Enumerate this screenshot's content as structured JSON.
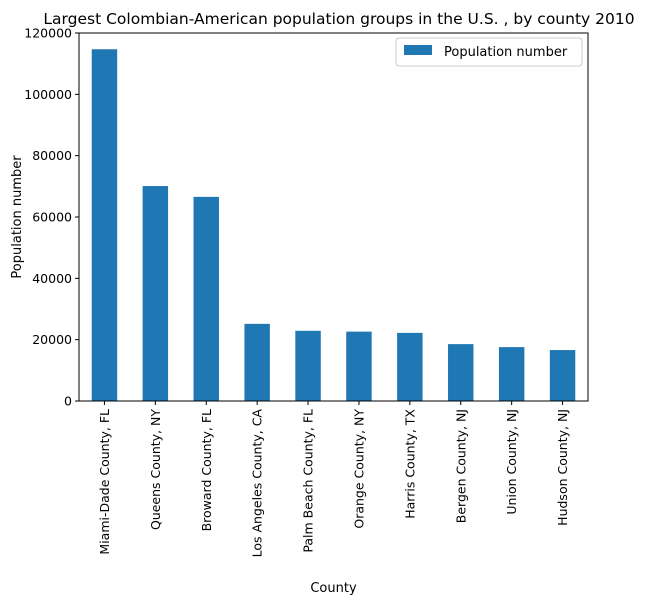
{
  "chart_data": {
    "type": "bar",
    "title": "Largest Colombian-American population groups in the U.S. , by county 2010",
    "xlabel": "County",
    "ylabel": "Population number",
    "categories": [
      "Miami-Dade County, FL",
      "Queens County, NY",
      "Broward County, FL",
      "Los Angeles County, CA",
      "Palm Beach County, FL",
      "Orange County, NY",
      "Harris County, TX",
      "Bergen County, NJ",
      "Union County, NJ",
      "Hudson County, NJ"
    ],
    "series": [
      {
        "name": "Population number",
        "values": [
          114701,
          70091,
          66564,
          25153,
          22889,
          22626,
          22212,
          18546,
          17572,
          16612
        ]
      }
    ],
    "ylim": [
      0,
      120000
    ],
    "yticks": [
      0,
      20000,
      40000,
      60000,
      80000,
      100000,
      120000
    ],
    "grid": false,
    "legend": "top-right",
    "colors": {
      "bar": "#1f77b4"
    }
  }
}
